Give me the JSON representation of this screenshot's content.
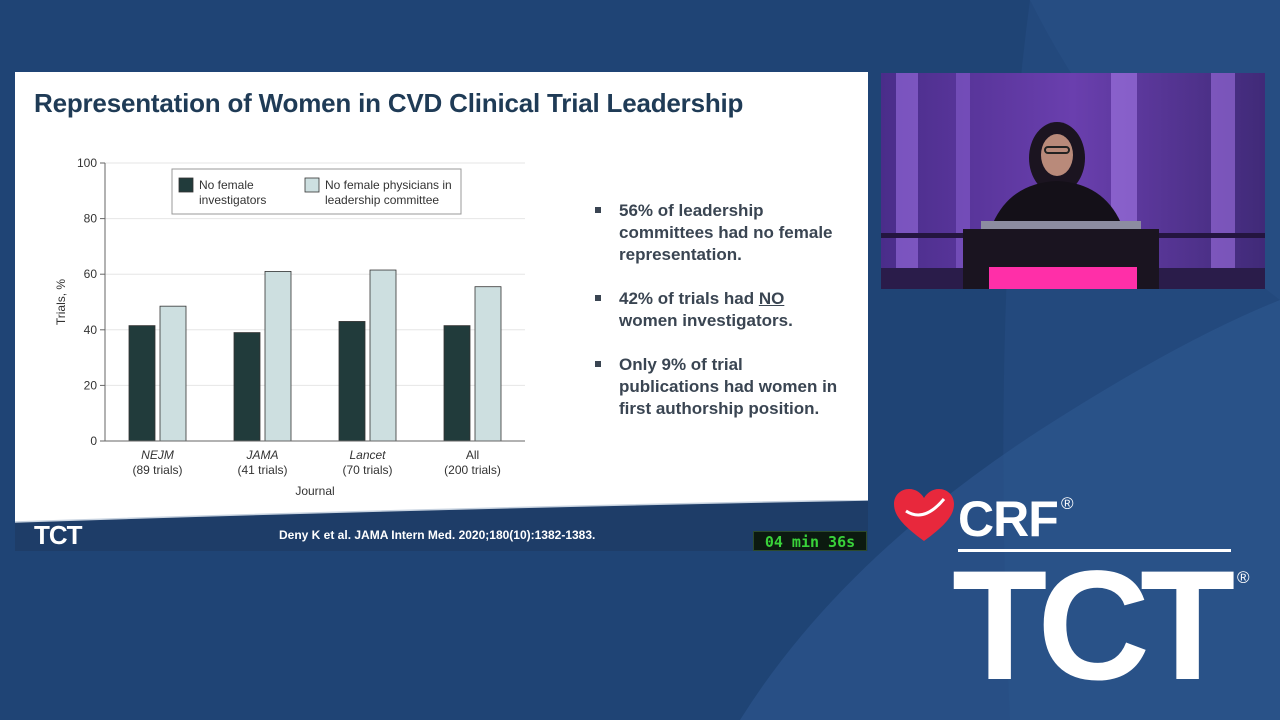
{
  "slide": {
    "title": "Representation of Women in CVD Clinical Trial Leadership",
    "bullets": [
      {
        "pre": "56% of leadership committees had no female representation.",
        "emph": "",
        "post": ""
      },
      {
        "pre": "42% of trials had ",
        "emph": "NO",
        "post": " women investigators."
      },
      {
        "pre": "Only 9% of trial publications had women in first authorship position.",
        "emph": "",
        "post": ""
      }
    ],
    "citation": "Deny K et al. JAMA Intern Med. 2020;180(10):1382-1383.",
    "timer": "04 min 36s",
    "footer_logo_crf": "CRF®",
    "footer_logo_tct": "TCT"
  },
  "chart_data": {
    "type": "bar",
    "xlabel": "Journal",
    "ylabel": "Trials, %",
    "ylim": [
      0,
      100
    ],
    "yticks": [
      0,
      20,
      40,
      60,
      80,
      100
    ],
    "categories": [
      {
        "name": "NEJM",
        "sub": "(89 trials)",
        "italic": true
      },
      {
        "name": "JAMA",
        "sub": "(41 trials)",
        "italic": true
      },
      {
        "name": "Lancet",
        "sub": "(70 trials)",
        "italic": true
      },
      {
        "name": "All",
        "sub": "(200 trials)",
        "italic": false
      }
    ],
    "series": [
      {
        "name": "No female investigators",
        "legend_lines": [
          "No female",
          "investigators"
        ],
        "color": "#213b3b",
        "values": [
          41.5,
          39,
          43,
          41.5
        ]
      },
      {
        "name": "No female physicians in leadership committee",
        "legend_lines": [
          "No female physicians in",
          "leadership committee"
        ],
        "color": "#cddfe0",
        "values": [
          48.5,
          61,
          61.5,
          55.5
        ]
      }
    ],
    "grid": true,
    "legend_position": "top"
  },
  "brand": {
    "crf": "CRF",
    "reg": "®",
    "tct": "TCT",
    "colors": {
      "heart": "#e8283c",
      "background": "#23497d"
    }
  },
  "video": {
    "icon": "speaker-video"
  }
}
